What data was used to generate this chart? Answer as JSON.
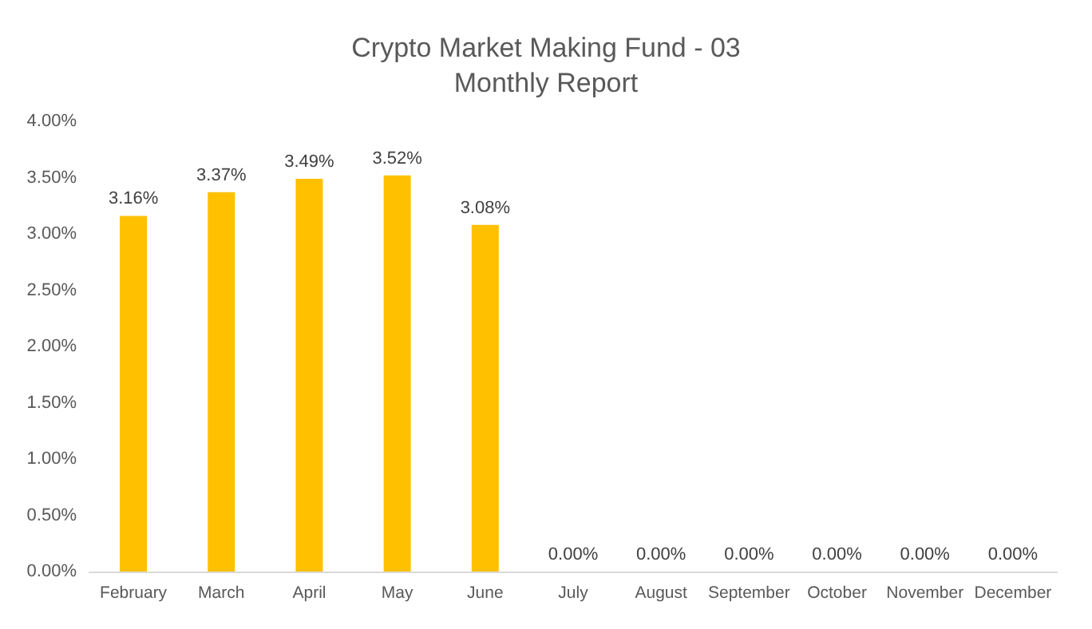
{
  "chart_data": {
    "type": "bar",
    "title": "Crypto Market Making Fund - 03\nMonthly Report",
    "categories": [
      "February",
      "March",
      "April",
      "May",
      "June",
      "July",
      "August",
      "September",
      "October",
      "November",
      "December"
    ],
    "values": [
      3.16,
      3.37,
      3.49,
      3.52,
      3.08,
      0,
      0,
      0,
      0,
      0,
      0
    ],
    "value_labels": [
      "3.16%",
      "3.37%",
      "3.49%",
      "3.52%",
      "3.08%",
      "0.00%",
      "0.00%",
      "0.00%",
      "0.00%",
      "0.00%",
      "0.00%"
    ],
    "color": "#ffc000",
    "ylim": [
      0,
      4
    ],
    "yticks": [
      {
        "value": 0,
        "label": "0.00%"
      },
      {
        "value": 0.5,
        "label": "0.50%"
      },
      {
        "value": 1,
        "label": "1.00%"
      },
      {
        "value": 1.5,
        "label": "1.50%"
      },
      {
        "value": 2,
        "label": "2.00%"
      },
      {
        "value": 2.5,
        "label": "2.50%"
      },
      {
        "value": 3,
        "label": "3.00%"
      },
      {
        "value": 3.5,
        "label": "3.50%"
      },
      {
        "value": 4,
        "label": "4.00%"
      }
    ],
    "grid": false
  }
}
